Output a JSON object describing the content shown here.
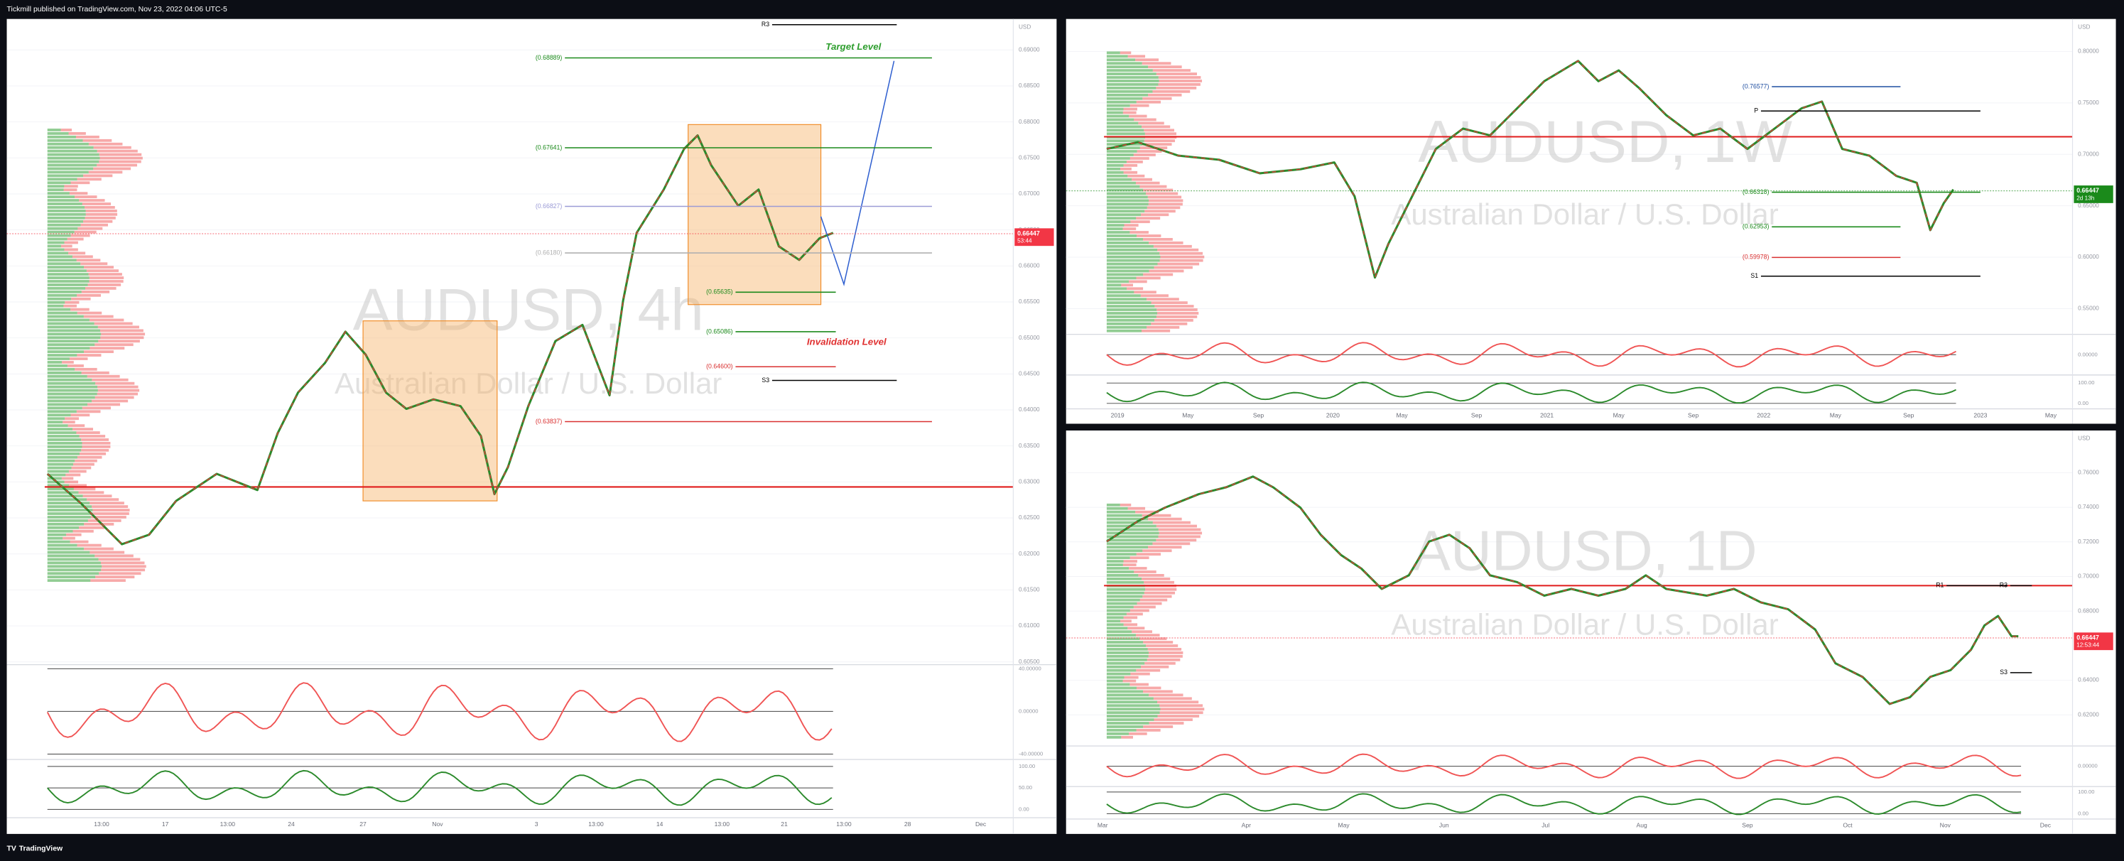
{
  "header": {
    "text": "Tickmill published on TradingView.com, Nov 23, 2022 04:06 UTC-5"
  },
  "panels": [
    {
      "watermark": "AUDUSD, 4h",
      "subtitle": "Australian Dollar / U.S. Dollar",
      "currency": "USD",
      "ylim": [
        0.6048,
        0.6943
      ],
      "yticks": [
        {
          "value": 0.69,
          "label": "0.69000"
        },
        {
          "value": 0.685,
          "label": "0.68500"
        },
        {
          "value": 0.68,
          "label": "0.68000"
        },
        {
          "value": 0.675,
          "label": "0.67500"
        },
        {
          "value": 0.67,
          "label": "0.67000"
        },
        {
          "value": 0.665,
          "label": "0.66500"
        },
        {
          "value": 0.66,
          "label": "0.66000"
        },
        {
          "value": 0.655,
          "label": "0.65500"
        },
        {
          "value": 0.65,
          "label": "0.65000"
        },
        {
          "value": 0.645,
          "label": "0.64500"
        },
        {
          "value": 0.64,
          "label": "0.64000"
        },
        {
          "value": 0.635,
          "label": "0.63500"
        },
        {
          "value": 0.63,
          "label": "0.63000"
        },
        {
          "value": 0.625,
          "label": "0.62500"
        },
        {
          "value": 0.62,
          "label": "0.62000"
        },
        {
          "value": 0.615,
          "label": "0.61500"
        },
        {
          "value": 0.61,
          "label": "0.61000"
        },
        {
          "value": 0.605,
          "label": "0.60500"
        }
      ],
      "price": 0.66447,
      "countdown": "53:44",
      "tag_color": "#f23645",
      "poc": 0.6293,
      "levels": [
        {
          "value": 0.6935,
          "label": "R3",
          "color": "#000000"
        },
        {
          "value": 0.68889,
          "label": "(0.68889)",
          "color": "#1b8a1b"
        },
        {
          "value": 0.67641,
          "label": "(0.67641)",
          "color": "#1b8a1b"
        },
        {
          "value": 0.66827,
          "label": "(0.66827)",
          "color": "#9b9bd6"
        },
        {
          "value": 0.6618,
          "label": "(0.66180)",
          "color": "#b0b0b0"
        },
        {
          "value": 0.65635,
          "label": "(0.65635)",
          "color": "#1b8a1b"
        },
        {
          "value": 0.65086,
          "label": "(0.65086)",
          "color": "#1b8a1b"
        },
        {
          "value": 0.646,
          "label": "(0.64600)",
          "color": "#d93030"
        },
        {
          "value": 0.6441,
          "label": "S3",
          "color": "#000000"
        },
        {
          "value": 0.63837,
          "label": "(0.63837)",
          "color": "#d93030"
        }
      ],
      "annotations": [
        {
          "text": "Target Level",
          "color": "#2e9e2e"
        },
        {
          "text": "Invalidation Level",
          "color": "#e03030"
        }
      ],
      "osc_ylim": [
        -43.8,
        42.5
      ],
      "osc_ticks": [
        {
          "value": 40,
          "label": "40.00000"
        },
        {
          "value": 0,
          "label": "0.00000"
        },
        {
          "value": -40,
          "label": "-40.00000"
        }
      ],
      "stoch_ylim": [
        -13,
        113
      ],
      "stoch_ticks": [
        {
          "value": 100,
          "label": "100.00"
        },
        {
          "value": 50,
          "label": "50.00"
        },
        {
          "value": 0,
          "label": "0.00"
        }
      ],
      "x_labels": [
        "13:00",
        "17",
        "13:00",
        "24",
        "27",
        "Nov",
        "3",
        "13:00",
        "14",
        "13:00",
        "21",
        "13:00",
        "28",
        "Dec"
      ]
    },
    {
      "watermark": "AUDUSD, 1W",
      "subtitle": "Australian Dollar / U.S. Dollar",
      "currency": "USD",
      "ylim": [
        0.5263,
        0.8316
      ],
      "yticks": [
        {
          "value": 0.8,
          "label": "0.80000"
        },
        {
          "value": 0.75,
          "label": "0.75000"
        },
        {
          "value": 0.7,
          "label": "0.70000"
        },
        {
          "value": 0.65,
          "label": "0.65000"
        },
        {
          "value": 0.6,
          "label": "0.60000"
        },
        {
          "value": 0.55,
          "label": "0.55000"
        }
      ],
      "price": 0.66447,
      "countdown": "2d 13h",
      "tag_color": "#1b8a1b",
      "poc": 0.7171,
      "levels": [
        {
          "value": 0.76577,
          "label": "(0.76577)",
          "color": "#1f4ea0"
        },
        {
          "value": 0.7421,
          "label": "P",
          "color": "#000000"
        },
        {
          "value": 0.66318,
          "label": "(0.66318)",
          "color": "#1b8a1b"
        },
        {
          "value": 0.62953,
          "label": "(0.62953)",
          "color": "#1b8a1b"
        },
        {
          "value": 0.59978,
          "label": "(0.59978)",
          "color": "#d93030"
        },
        {
          "value": 0.5816,
          "label": "S1",
          "color": "#000000"
        }
      ],
      "annotations": [],
      "osc_ylim": [
        -1,
        1
      ],
      "osc_ticks": [
        {
          "value": 0,
          "label": "0.00000"
        }
      ],
      "stoch_ylim": [
        -27,
        133
      ],
      "stoch_ticks": [
        {
          "value": 100,
          "label": "100.00"
        },
        {
          "value": 0,
          "label": "0.00"
        }
      ],
      "x_labels": [
        "2019",
        "May",
        "Sep",
        "2020",
        "May",
        "Sep",
        "2021",
        "May",
        "Sep",
        "2022",
        "May",
        "Sep",
        "2023",
        "May"
      ]
    },
    {
      "watermark": "AUDUSD, 1D",
      "subtitle": "Australian Dollar / U.S. Dollar",
      "currency": "USD",
      "ylim": [
        0.6028,
        0.7844
      ],
      "yticks": [
        {
          "value": 0.76,
          "label": "0.76000"
        },
        {
          "value": 0.74,
          "label": "0.74000"
        },
        {
          "value": 0.72,
          "label": "0.72000"
        },
        {
          "value": 0.7,
          "label": "0.70000"
        },
        {
          "value": 0.68,
          "label": "0.68000"
        },
        {
          "value": 0.64,
          "label": "0.64000"
        },
        {
          "value": 0.62,
          "label": "0.62000"
        }
      ],
      "price": 0.66447,
      "countdown": "12:53:44",
      "tag_color": "#f23645",
      "poc": 0.6947,
      "levels": [
        {
          "value": 0.6947,
          "label": "R1",
          "color": "#000000"
        },
        {
          "value": 0.6947,
          "label": "R3",
          "color": "#000000"
        },
        {
          "value": 0.6444,
          "label": "S3",
          "color": "#000000"
        }
      ],
      "annotations": [],
      "osc_ylim": [
        -1,
        1
      ],
      "osc_ticks": [
        {
          "value": 0,
          "label": "0.00000"
        }
      ],
      "stoch_ylim": [
        -31,
        119
      ],
      "stoch_ticks": [
        {
          "value": 100,
          "label": "100.00"
        },
        {
          "value": 0,
          "label": "0.00"
        }
      ],
      "x_labels": [
        "Mar",
        "Apr",
        "May",
        "Jun",
        "Jul",
        "Aug",
        "Sep",
        "Oct",
        "Nov",
        "Dec"
      ]
    }
  ],
  "footer": {
    "text": "TradingView"
  }
}
